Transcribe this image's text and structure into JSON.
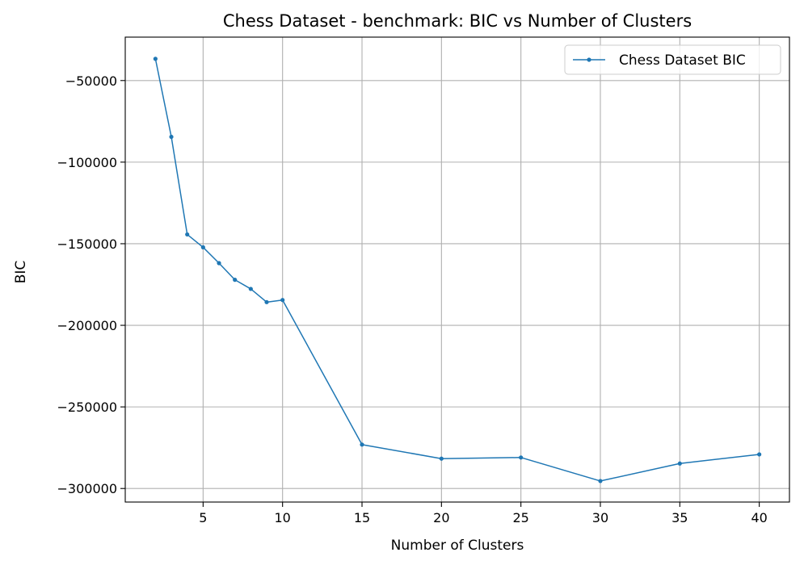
{
  "chart_data": {
    "type": "line",
    "title": "Chess Dataset - benchmark: BIC vs Number of Clusters",
    "xlabel": "Number of Clusters",
    "ylabel": "BIC",
    "xlim": [
      0.1,
      41.9
    ],
    "ylim": [
      -308300,
      -23400
    ],
    "xticks": [
      5,
      10,
      15,
      20,
      25,
      30,
      35,
      40
    ],
    "xtick_labels": [
      "5",
      "10",
      "15",
      "20",
      "25",
      "30",
      "35",
      "40"
    ],
    "yticks": [
      -50000,
      -100000,
      -150000,
      -200000,
      -250000,
      -300000
    ],
    "ytick_labels": [
      "−50000",
      "−100000",
      "−150000",
      "−200000",
      "−250000",
      "−300000"
    ],
    "grid": true,
    "legend": {
      "position": "top-right"
    },
    "series": [
      {
        "name": "Chess Dataset BIC",
        "color": "#1f77b4",
        "marker": "circle",
        "x": [
          2,
          3,
          4,
          5,
          6,
          7,
          8,
          9,
          10,
          15,
          20,
          25,
          30,
          35,
          40
        ],
        "y": [
          -36700,
          -84500,
          -144300,
          -152200,
          -161900,
          -172100,
          -177700,
          -185800,
          -184500,
          -273100,
          -281700,
          -281000,
          -295400,
          -284700,
          -279100
        ]
      }
    ]
  }
}
